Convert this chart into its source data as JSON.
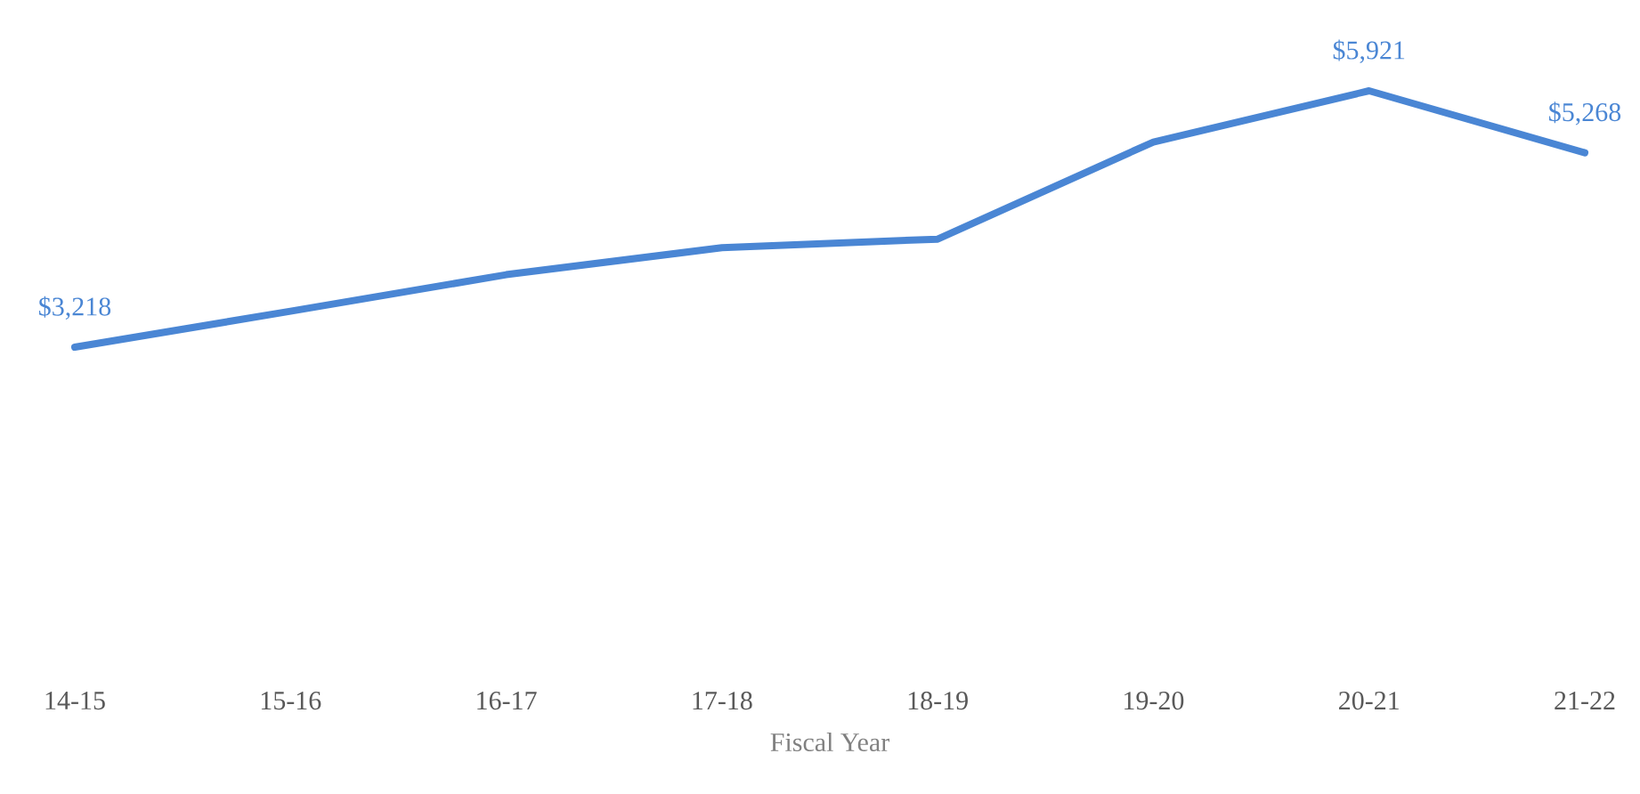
{
  "chart_data": {
    "type": "line",
    "xlabel": "Fiscal Year",
    "categories": [
      "14-15",
      "15-16",
      "16-17",
      "17-18",
      "18-19",
      "19-20",
      "20-21",
      "21-22"
    ],
    "series": [
      {
        "color": "#4a86d4",
        "values": [
          3218,
          3597,
          3982,
          4267,
          4357,
          5381,
          5921,
          5268
        ],
        "value_labels": [
          "$3,218",
          null,
          null,
          null,
          null,
          null,
          "$5,921",
          "$5,268"
        ]
      }
    ]
  }
}
